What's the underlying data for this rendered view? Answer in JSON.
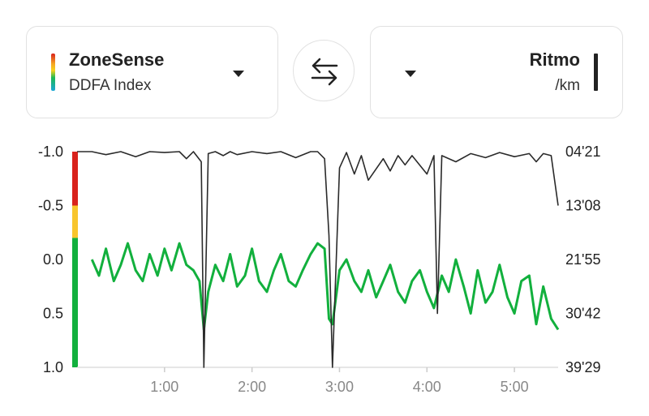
{
  "left_metric": {
    "title": "ZoneSense",
    "subtitle": "DDFA Index",
    "icon": "zone-color-strip-icon"
  },
  "swap": {
    "icon": "swap-arrows-icon"
  },
  "right_metric": {
    "title": "Ritmo",
    "subtitle": "/km",
    "icon": "line-style-icon"
  },
  "colors": {
    "ddfa_line": "#12b03d",
    "ddfa_yellow": "#f8c52c",
    "pace_line": "#2a2a2a",
    "zone_red": "#d9221c",
    "zone_yellow": "#f8c52c",
    "zone_green": "#12b03d"
  },
  "chart_data": {
    "type": "line",
    "x_ticks": [
      "1:00",
      "2:00",
      "3:00",
      "4:00",
      "5:00"
    ],
    "xlim": [
      0,
      5.5
    ],
    "left_axis": {
      "ticks": [
        "-1.0",
        "-0.5",
        "0.0",
        "0.5",
        "1.0"
      ],
      "ylim": [
        1.0,
        -1.0
      ],
      "reversed": true
    },
    "right_axis": {
      "ticks": [
        "04'21",
        "13'08",
        "21'55",
        "30'42",
        "39'29"
      ]
    },
    "zone_bands": [
      {
        "zone": "red",
        "from": -1.0,
        "to": -0.5
      },
      {
        "zone": "yellow",
        "from": -0.5,
        "to": -0.2
      },
      {
        "zone": "green",
        "from": -0.2,
        "to": 1.0
      }
    ],
    "series": [
      {
        "name": "DDFA Index",
        "x": [
          0.17,
          0.25,
          0.33,
          0.42,
          0.5,
          0.58,
          0.67,
          0.75,
          0.83,
          0.92,
          1.0,
          1.08,
          1.17,
          1.25,
          1.33,
          1.4,
          1.45,
          1.5,
          1.58,
          1.67,
          1.75,
          1.83,
          1.92,
          2.0,
          2.08,
          2.17,
          2.25,
          2.33,
          2.42,
          2.5,
          2.58,
          2.67,
          2.75,
          2.83,
          2.88,
          2.92,
          3.0,
          3.08,
          3.17,
          3.25,
          3.33,
          3.42,
          3.5,
          3.58,
          3.67,
          3.75,
          3.83,
          3.92,
          4.0,
          4.08,
          4.17,
          4.25,
          4.33,
          4.42,
          4.5,
          4.58,
          4.67,
          4.75,
          4.83,
          4.92,
          5.0,
          5.08,
          5.17,
          5.25,
          5.33,
          5.42,
          5.5
        ],
        "y": [
          0.0,
          0.15,
          -0.1,
          0.2,
          0.05,
          -0.15,
          0.1,
          0.2,
          -0.05,
          0.15,
          -0.1,
          0.1,
          -0.15,
          0.05,
          0.1,
          0.2,
          0.65,
          0.3,
          0.05,
          0.2,
          -0.05,
          0.25,
          0.15,
          -0.1,
          0.2,
          0.3,
          0.1,
          -0.05,
          0.2,
          0.25,
          0.1,
          -0.05,
          -0.15,
          -0.1,
          0.55,
          0.6,
          0.1,
          0.0,
          0.2,
          0.3,
          0.1,
          0.35,
          0.2,
          0.05,
          0.3,
          0.4,
          0.2,
          0.1,
          0.3,
          0.45,
          0.15,
          0.3,
          0.0,
          0.25,
          0.5,
          0.1,
          0.4,
          0.3,
          0.05,
          0.35,
          0.5,
          0.2,
          0.15,
          0.6,
          0.25,
          0.55,
          0.65
        ]
      },
      {
        "name": "Ritmo",
        "x": [
          0.0,
          0.17,
          0.33,
          0.5,
          0.67,
          0.83,
          1.0,
          1.17,
          1.25,
          1.33,
          1.42,
          1.45,
          1.5,
          1.58,
          1.67,
          1.75,
          1.83,
          2.0,
          2.17,
          2.33,
          2.5,
          2.67,
          2.75,
          2.83,
          2.88,
          2.92,
          3.0,
          3.08,
          3.17,
          3.25,
          3.33,
          3.5,
          3.58,
          3.67,
          3.75,
          3.83,
          4.0,
          4.08,
          4.12,
          4.17,
          4.33,
          4.5,
          4.67,
          4.83,
          5.0,
          5.17,
          5.25,
          5.33,
          5.42,
          5.5
        ],
        "y": [
          "04'21",
          "04'21",
          "04'50",
          "04'21",
          "05'10",
          "04'21",
          "04'30",
          "04'21",
          "05'30",
          "04'21",
          "06'00",
          "39'29",
          "04'40",
          "04'21",
          "05'00",
          "04'21",
          "04'50",
          "04'21",
          "04'40",
          "04'21",
          "05'20",
          "04'21",
          "04'21",
          "05'30",
          "18'00",
          "39'29",
          "07'00",
          "04'30",
          "08'00",
          "05'00",
          "09'00",
          "05'30",
          "07'30",
          "05'00",
          "06'30",
          "05'00",
          "08'00",
          "05'00",
          "30'42",
          "05'00",
          "06'00",
          "04'40",
          "05'20",
          "04'30",
          "05'10",
          "04'40",
          "06'00",
          "04'40",
          "05'00",
          "13'08"
        ]
      }
    ]
  }
}
